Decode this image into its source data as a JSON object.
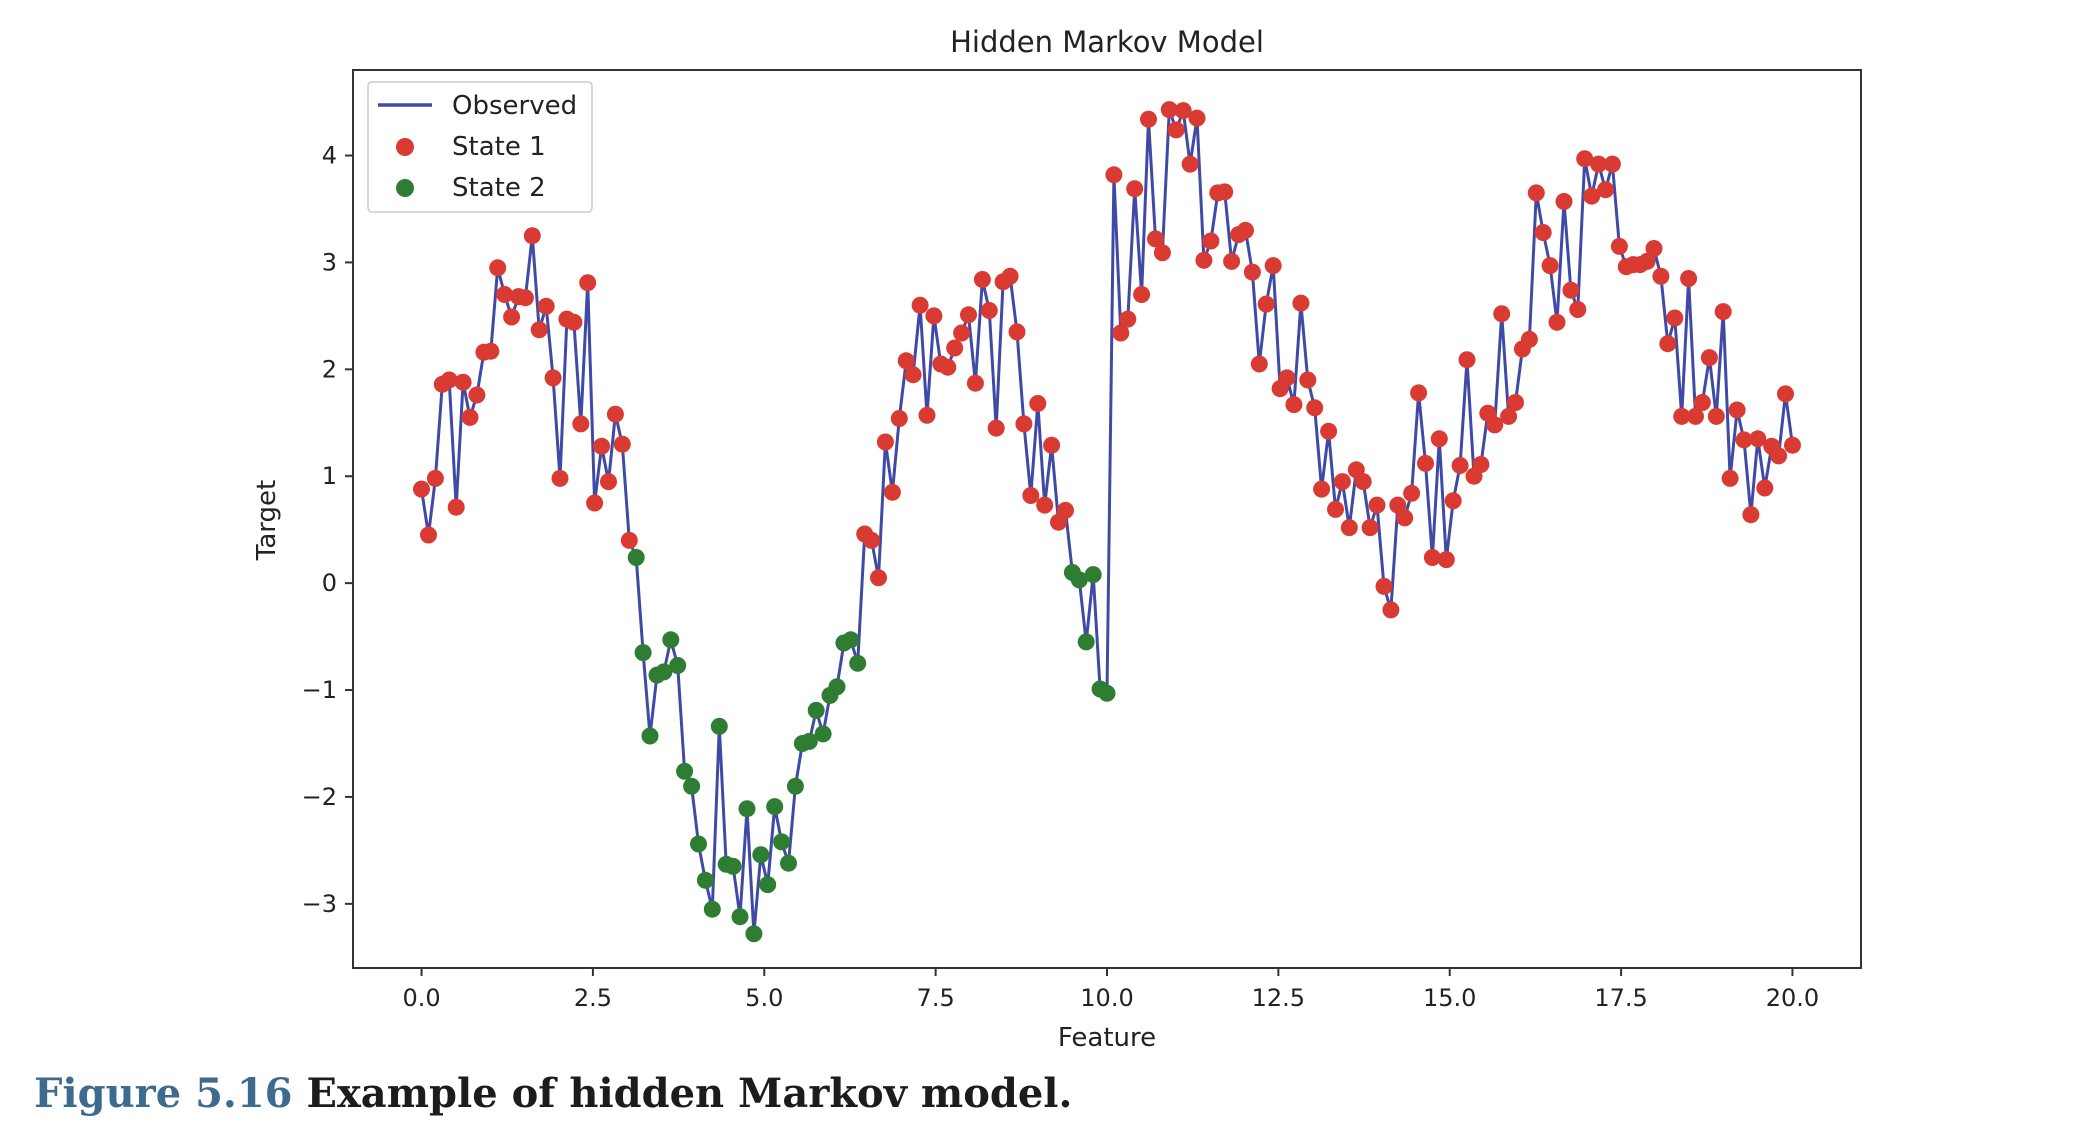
{
  "caption": {
    "number": "Figure 5.16",
    "text": "Example of hidden Markov model."
  },
  "colors": {
    "observed_line": "#3f4aa6",
    "state1": "#d93a32",
    "state2": "#2e7d32",
    "axes": "#333333"
  },
  "chart_data": {
    "type": "line",
    "title": "Hidden Markov Model",
    "xlabel": "Feature",
    "ylabel": "Target",
    "xlim": [
      -1,
      21
    ],
    "ylim": [
      -3.6,
      4.8
    ],
    "xticks": [
      0.0,
      2.5,
      5.0,
      7.5,
      10.0,
      12.5,
      15.0,
      17.5,
      20.0
    ],
    "xtick_labels": [
      "0.0",
      "2.5",
      "5.0",
      "7.5",
      "10.0",
      "12.5",
      "15.0",
      "17.5",
      "20.0"
    ],
    "yticks": [
      -3,
      -2,
      -1,
      0,
      1,
      2,
      3,
      4
    ],
    "ytick_labels": [
      "−3",
      "−2",
      "−1",
      "0",
      "1",
      "2",
      "3",
      "4"
    ],
    "grid": false,
    "legend_position": "top-left",
    "legend": [
      {
        "label": "Observed",
        "kind": "line"
      },
      {
        "label": "State 1",
        "kind": "marker"
      },
      {
        "label": "State 2",
        "kind": "marker"
      }
    ],
    "x_start": 0,
    "x_end": 20,
    "y": [
      0.88,
      0.45,
      0.98,
      1.86,
      1.9,
      0.71,
      1.88,
      1.55,
      1.76,
      2.16,
      2.17,
      2.95,
      2.7,
      2.49,
      2.68,
      2.67,
      3.25,
      2.37,
      2.59,
      1.92,
      0.98,
      2.47,
      2.44,
      1.49,
      2.81,
      0.75,
      1.28,
      0.95,
      1.58,
      1.3,
      0.4,
      0.24,
      -0.65,
      -1.43,
      -0.86,
      -0.83,
      -0.53,
      -0.77,
      -1.76,
      -1.9,
      -2.44,
      -2.78,
      -3.05,
      -1.34,
      -2.63,
      -2.65,
      -3.12,
      -2.11,
      -3.28,
      -2.54,
      -2.82,
      -2.09,
      -2.42,
      -2.62,
      -1.9,
      -1.5,
      -1.48,
      -1.19,
      -1.41,
      -1.05,
      -0.97,
      -0.56,
      -0.53,
      -0.75,
      0.46,
      0.4,
      0.05,
      1.32,
      0.85,
      1.54,
      2.08,
      1.95,
      2.6,
      1.57,
      2.5,
      2.05,
      2.02,
      2.2,
      2.34,
      2.51,
      1.87,
      2.84,
      2.55,
      1.45,
      2.82,
      2.87,
      2.35,
      1.49,
      0.82,
      1.68,
      0.73,
      1.29,
      0.57,
      0.68,
      0.1,
      0.03,
      -0.55,
      0.08,
      -0.99,
      -1.03,
      3.82,
      2.34,
      2.47,
      3.69,
      2.7,
      4.34,
      3.22,
      3.09,
      4.43,
      4.24,
      4.42,
      3.92,
      4.35,
      3.02,
      3.2,
      3.65,
      3.66,
      3.01,
      3.26,
      3.3,
      2.91,
      2.05,
      2.61,
      2.97,
      1.82,
      1.92,
      1.67,
      2.62,
      1.9,
      1.64,
      0.88,
      1.42,
      0.69,
      0.95,
      0.52,
      1.06,
      0.95,
      0.52,
      0.73,
      -0.03,
      -0.25,
      0.73,
      0.61,
      0.84,
      1.78,
      1.12,
      0.24,
      1.35,
      0.22,
      0.77,
      1.1,
      2.09,
      1.0,
      1.11,
      1.59,
      1.48,
      2.52,
      1.56,
      1.69,
      2.19,
      2.28,
      3.65,
      3.28,
      2.97,
      2.44,
      3.57,
      2.74,
      2.56,
      3.97,
      3.62,
      3.92,
      3.68,
      3.92,
      3.15,
      2.96,
      2.98,
      2.98,
      3.01,
      3.13,
      2.87,
      2.24,
      2.48,
      1.56,
      2.85,
      1.56,
      1.69,
      2.11,
      1.56,
      2.54,
      0.98,
      1.62,
      1.34,
      0.64,
      1.35,
      0.89,
      1.28,
      1.19,
      1.77,
      1.29
    ],
    "states": [
      1,
      1,
      1,
      1,
      1,
      1,
      1,
      1,
      1,
      1,
      1,
      1,
      1,
      1,
      1,
      1,
      1,
      1,
      1,
      1,
      1,
      1,
      1,
      1,
      1,
      1,
      1,
      1,
      1,
      1,
      1,
      2,
      2,
      2,
      2,
      2,
      2,
      2,
      2,
      2,
      2,
      2,
      2,
      2,
      2,
      2,
      2,
      2,
      2,
      2,
      2,
      2,
      2,
      2,
      2,
      2,
      2,
      2,
      2,
      2,
      2,
      2,
      2,
      2,
      1,
      1,
      1,
      1,
      1,
      1,
      1,
      1,
      1,
      1,
      1,
      1,
      1,
      1,
      1,
      1,
      1,
      1,
      1,
      1,
      1,
      1,
      1,
      1,
      1,
      1,
      1,
      1,
      1,
      1,
      2,
      2,
      2,
      2,
      2,
      2,
      1,
      1,
      1,
      1,
      1,
      1,
      1,
      1,
      1,
      1,
      1,
      1,
      1,
      1,
      1,
      1,
      1,
      1,
      1,
      1,
      1,
      1,
      1,
      1,
      1,
      1,
      1,
      1,
      1,
      1,
      1,
      1,
      1,
      1,
      1,
      1,
      1,
      1,
      1,
      1,
      1,
      1,
      1,
      1,
      1,
      1,
      1,
      1,
      1,
      1,
      1,
      1,
      1,
      1,
      1,
      1,
      1,
      1,
      1,
      1,
      1,
      1,
      1,
      1,
      1,
      1,
      1,
      1,
      1,
      1,
      1,
      1,
      1,
      1,
      1,
      1,
      1,
      1,
      1,
      1,
      1,
      1,
      1,
      1,
      1,
      1,
      1,
      1,
      1,
      1,
      1,
      1,
      1,
      1,
      1,
      1,
      1,
      1,
      1,
      1,
      1
    ]
  }
}
